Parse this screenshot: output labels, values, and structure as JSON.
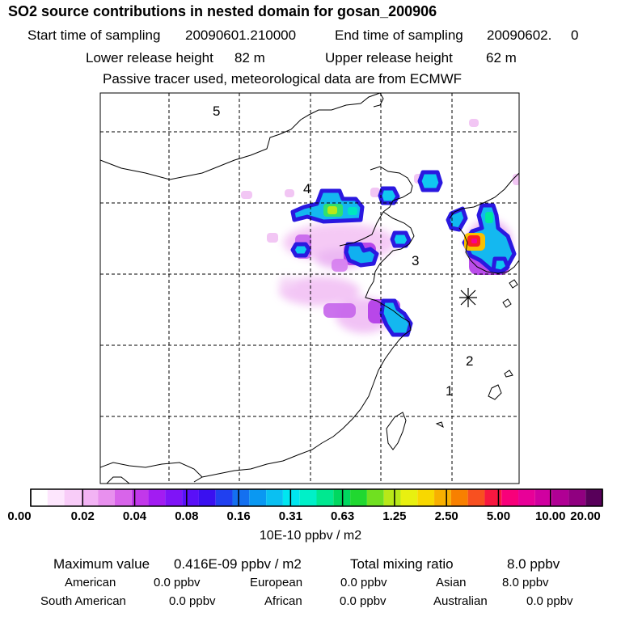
{
  "header": {
    "title": "SO2 source contributions in nested domain for gosan_200906",
    "start_label": "Start time of sampling",
    "start_value": "20090601.210000",
    "end_label": "End time of sampling",
    "end_value": "20090602.     0",
    "lower_label": "Lower release height",
    "lower_value": "82 m",
    "upper_label": "Upper release height",
    "upper_value": "62 m",
    "note": "Passive tracer used, meteorological data are from ECMWF"
  },
  "map": {
    "region_labels": [
      "5",
      "4",
      "3",
      "2",
      "1"
    ],
    "receptor_marker": "asterisk-station-gosan"
  },
  "colorbar": {
    "ticks": [
      "0.00",
      "0.02",
      "0.04",
      "0.08",
      "0.16",
      "0.31",
      "0.63",
      "1.25",
      "2.50",
      "5.00",
      "10.00",
      "20.00"
    ],
    "unit": "10E-10 ppbv / m2",
    "colors": [
      "#ffffff",
      "#fde6fd",
      "#f8ccf8",
      "#f2b3f4",
      "#e890ee",
      "#d864ea",
      "#c238ea",
      "#a21cf2",
      "#7f14f7",
      "#5a10f7",
      "#3a10f0",
      "#2040f0",
      "#1470f0",
      "#0a98f2",
      "#0ac0f2",
      "#00e6f0",
      "#00f0c8",
      "#00e890",
      "#00d860",
      "#20d830",
      "#70e020",
      "#b8e818",
      "#e8f010",
      "#f8d800",
      "#f8b000",
      "#f88000",
      "#f85020",
      "#f81840",
      "#f8007a",
      "#e80098",
      "#d000a0",
      "#b00094",
      "#900080",
      "#58005a"
    ]
  },
  "stats": {
    "max_label": "Maximum value",
    "max_value": "0.416E-09 ppbv / m2",
    "total_label": "Total mixing ratio",
    "total_value": "8.0 ppbv",
    "american_label": "American",
    "american_value": "0.0 ppbv",
    "european_label": "European",
    "european_value": "0.0 ppbv",
    "asian_label": "Asian",
    "asian_value": "8.0 ppbv",
    "south_american_label": "South American",
    "south_american_value": "0.0 ppbv",
    "african_label": "African",
    "african_value": "0.0 ppbv",
    "australian_label": "Australian",
    "australian_value": "0.0 ppbv"
  }
}
